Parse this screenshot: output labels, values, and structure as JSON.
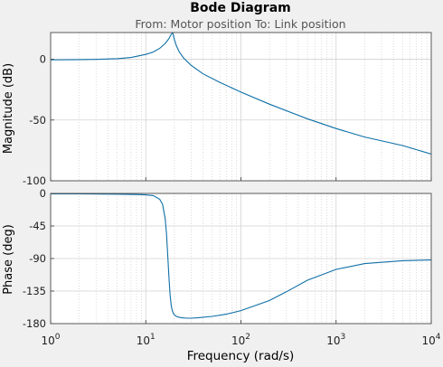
{
  "chart_data": {
    "type": "line",
    "title": "Bode Diagram",
    "subtitle": "From: Motor position  To: Link position",
    "xlabel": "Frequency  (rad/s)",
    "xscale": "log",
    "xlim": [
      1,
      10000
    ],
    "x_ticks": [
      {
        "value": 1,
        "base": "10",
        "exp": "0"
      },
      {
        "value": 10,
        "base": "10",
        "exp": "1"
      },
      {
        "value": 100,
        "base": "10",
        "exp": "2"
      },
      {
        "value": 1000,
        "base": "10",
        "exp": "3"
      },
      {
        "value": 10000,
        "base": "10",
        "exp": "4"
      }
    ],
    "grid": true,
    "line_color": "#0e6fa7",
    "magnitude": {
      "ylabel": "Magnitude (dB)",
      "ylim": [
        -100,
        22
      ],
      "ytick_values": [
        0,
        -50,
        -100
      ],
      "ytick_labels": [
        "0",
        "-50",
        "-100"
      ],
      "x": [
        1,
        2,
        3,
        5,
        7,
        10,
        12,
        14,
        16,
        17.5,
        18.5,
        19.2,
        20,
        21,
        22.5,
        25,
        30,
        40,
        60,
        100,
        200,
        500,
        1000,
        2000,
        5000,
        10000
      ],
      "y": [
        -0.5,
        -0.3,
        -0.1,
        0.5,
        1.5,
        4,
        6,
        9,
        13,
        17,
        20.5,
        22,
        16,
        11,
        6,
        1,
        -5,
        -12,
        -19,
        -27,
        -37,
        -49,
        -57,
        -64,
        -71,
        -78
      ]
    },
    "phase": {
      "ylabel": "Phase (deg)",
      "ylim": [
        -180,
        0
      ],
      "ytick_values": [
        0,
        -45,
        -90,
        -135,
        -180
      ],
      "ytick_labels": [
        "0",
        "-45",
        "-90",
        "-135",
        "-180"
      ],
      "x": [
        1,
        2,
        5,
        8,
        10,
        12,
        14,
        15,
        16,
        16.5,
        17,
        17.5,
        18,
        18.5,
        19,
        19.5,
        20,
        21,
        22,
        24,
        27,
        30,
        35,
        50,
        70,
        100,
        200,
        300,
        500,
        1000,
        2000,
        5000,
        10000
      ],
      "y": [
        -0.5,
        -0.5,
        -1,
        -1.5,
        -2,
        -3,
        -8,
        -15,
        -35,
        -55,
        -85,
        -115,
        -140,
        -155,
        -162,
        -166,
        -168,
        -170,
        -171,
        -172,
        -172.5,
        -172.5,
        -172,
        -170,
        -167,
        -162,
        -148,
        -136,
        -120,
        -105,
        -97,
        -93,
        -92
      ]
    }
  }
}
